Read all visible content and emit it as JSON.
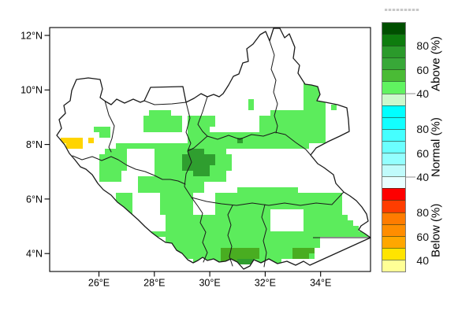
{
  "figure": {
    "kind": "seasonal tercile probability forecast map",
    "region_axes_units": {
      "x": "degrees East",
      "y": "degrees North"
    }
  },
  "chart_data": {
    "type": "heatmap",
    "x_axis": {
      "ticks": [
        {
          "label": "26°E",
          "lon": 26
        },
        {
          "label": "28°E",
          "lon": 28
        },
        {
          "label": "30°E",
          "lon": 30
        },
        {
          "label": "32°E",
          "lon": 32
        },
        {
          "label": "34°E",
          "lon": 34
        }
      ]
    },
    "y_axis": {
      "ticks": [
        {
          "label": "12°N",
          "lat": 12
        },
        {
          "label": "10°N",
          "lat": 10
        },
        {
          "label": "8°N",
          "lat": 8
        },
        {
          "label": "6°N",
          "lat": 6
        },
        {
          "label": "4°N",
          "lat": 4
        }
      ]
    },
    "grid": {
      "cell": 7,
      "origin": [
        63,
        35
      ],
      "colors": {
        "G": "#5cec5c",
        "M": "#49ad21",
        "D": "#2f9e2f",
        "Y": "#ffd400",
        "P": "#ffff99"
      },
      "color_meaning": {
        "G": "above-normal 40-50%",
        "M": "above-normal 50-60%",
        "D": "above-normal 60-80%",
        "Y": "below-normal 40-50%",
        "P": "below-normal ~40%"
      },
      "rows": [
        {
          "r": 8,
          "runs": [
            [
              47,
              47,
              "G"
            ]
          ]
        },
        {
          "r": 9,
          "runs": [
            [
              46,
              49,
              "G"
            ]
          ]
        },
        {
          "r": 10,
          "runs": [
            [
              46,
              49,
              "G"
            ]
          ]
        },
        {
          "r": 11,
          "runs": [
            [
              46,
              49,
              "G"
            ]
          ]
        },
        {
          "r": 12,
          "runs": [
            [
              46,
              49,
              "G"
            ]
          ]
        },
        {
          "r": 13,
          "runs": [
            [
              36,
              36,
              "G"
            ],
            [
              46,
              49,
              "G"
            ]
          ]
        },
        {
          "r": 14,
          "runs": [
            [
              36,
              36,
              "G"
            ],
            [
              46,
              49,
              "G"
            ],
            [
              51,
              51,
              "G"
            ]
          ]
        },
        {
          "r": 15,
          "runs": [
            [
              18,
              21,
              "G"
            ],
            [
              40,
              49,
              "G"
            ]
          ]
        },
        {
          "r": 16,
          "runs": [
            [
              17,
              23,
              "G"
            ],
            [
              25,
              29,
              "G"
            ],
            [
              38,
              49,
              "G"
            ]
          ]
        },
        {
          "r": 17,
          "runs": [
            [
              17,
              23,
              "G"
            ],
            [
              25,
              29,
              "G"
            ],
            [
              38,
              49,
              "G"
            ]
          ]
        },
        {
          "r": 18,
          "runs": [
            [
              8,
              10,
              "G"
            ],
            [
              17,
              23,
              "G"
            ],
            [
              25,
              28,
              "G"
            ],
            [
              38,
              49,
              "G"
            ]
          ]
        },
        {
          "r": 19,
          "runs": [
            [
              9,
              10,
              "G"
            ],
            [
              25,
              49,
              "G"
            ]
          ]
        },
        {
          "r": 20,
          "runs": [
            [
              2,
              5,
              "Y"
            ],
            [
              7,
              7,
              "Y"
            ],
            [
              25,
              33,
              "G"
            ],
            [
              34,
              34,
              "D"
            ],
            [
              35,
              49,
              "G"
            ]
          ]
        },
        {
          "r": 21,
          "runs": [
            [
              2,
              2,
              "P"
            ],
            [
              3,
              5,
              "Y"
            ],
            [
              12,
              46,
              "G"
            ]
          ]
        },
        {
          "r": 22,
          "runs": [
            [
              10,
              13,
              "G"
            ],
            [
              19,
              24,
              "G"
            ],
            [
              25,
              27,
              "D"
            ],
            [
              28,
              31,
              "G"
            ]
          ]
        },
        {
          "r": 23,
          "runs": [
            [
              9,
              13,
              "G"
            ],
            [
              19,
              23,
              "G"
            ],
            [
              24,
              29,
              "D"
            ],
            [
              30,
              32,
              "G"
            ]
          ]
        },
        {
          "r": 24,
          "runs": [
            [
              9,
              13,
              "G"
            ],
            [
              19,
              23,
              "G"
            ],
            [
              24,
              29,
              "D"
            ],
            [
              30,
              32,
              "G"
            ]
          ]
        },
        {
          "r": 25,
          "runs": [
            [
              9,
              13,
              "G"
            ],
            [
              19,
              23,
              "G"
            ],
            [
              24,
              28,
              "D"
            ],
            [
              29,
              32,
              "G"
            ]
          ]
        },
        {
          "r": 26,
          "runs": [
            [
              9,
              12,
              "G"
            ],
            [
              19,
              25,
              "G"
            ],
            [
              26,
              28,
              "D"
            ],
            [
              29,
              31,
              "G"
            ]
          ]
        },
        {
          "r": 27,
          "runs": [
            [
              9,
              12,
              "G"
            ],
            [
              16,
              31,
              "G"
            ]
          ]
        },
        {
          "r": 28,
          "runs": [
            [
              16,
              27,
              "G"
            ]
          ]
        },
        {
          "r": 29,
          "runs": [
            [
              16,
              27,
              "G"
            ],
            [
              34,
              44,
              "G"
            ]
          ]
        },
        {
          "r": 30,
          "runs": [
            [
              12,
              14,
              "G"
            ],
            [
              20,
              25,
              "G"
            ],
            [
              30,
              52,
              "G"
            ]
          ]
        },
        {
          "r": 31,
          "runs": [
            [
              12,
              14,
              "G"
            ],
            [
              20,
              25,
              "G"
            ],
            [
              30,
              52,
              "G"
            ]
          ]
        },
        {
          "r": 32,
          "runs": [
            [
              12,
              14,
              "G"
            ],
            [
              20,
              25,
              "G"
            ],
            [
              30,
              52,
              "G"
            ]
          ]
        },
        {
          "r": 33,
          "runs": [
            [
              12,
              14,
              "G"
            ],
            [
              20,
              25,
              "G"
            ],
            [
              30,
              39,
              "G"
            ],
            [
              46,
              52,
              "G"
            ]
          ]
        },
        {
          "r": 34,
          "runs": [
            [
              21,
              39,
              "G"
            ],
            [
              46,
              53,
              "G"
            ]
          ]
        },
        {
          "r": 35,
          "runs": [
            [
              21,
              39,
              "G"
            ],
            [
              46,
              54,
              "G"
            ]
          ]
        },
        {
          "r": 36,
          "runs": [
            [
              15,
              15,
              "G"
            ],
            [
              21,
              39,
              "G"
            ],
            [
              46,
              55,
              "G"
            ]
          ]
        },
        {
          "r": 37,
          "runs": [
            [
              17,
              57,
              "G"
            ]
          ]
        },
        {
          "r": 38,
          "runs": [
            [
              21,
              48,
              "G"
            ]
          ]
        },
        {
          "r": 39,
          "runs": [
            [
              21,
              48,
              "G"
            ]
          ]
        },
        {
          "r": 40,
          "runs": [
            [
              22,
              30,
              "G"
            ],
            [
              31,
              37,
              "M"
            ],
            [
              38,
              43,
              "G"
            ],
            [
              44,
              47,
              "M"
            ]
          ]
        },
        {
          "r": 41,
          "runs": [
            [
              23,
              30,
              "G"
            ],
            [
              31,
              37,
              "M"
            ],
            [
              38,
              43,
              "G"
            ],
            [
              44,
              46,
              "M"
            ],
            [
              47,
              47,
              "G"
            ]
          ]
        },
        {
          "r": 42,
          "runs": [
            [
              26,
              30,
              "G"
            ],
            [
              31,
              33,
              "M"
            ],
            [
              34,
              36,
              "D"
            ],
            [
              37,
              41,
              "G"
            ]
          ]
        }
      ]
    }
  },
  "legend": {
    "sections": [
      {
        "label": "Above (%)",
        "tick_labels": [
          "80",
          "60",
          "40"
        ],
        "colors": [
          "#004f00",
          "#0e7c0e",
          "#2b9a2b",
          "#38a838",
          "#4abb35",
          "#60f360",
          "#ccf9cc"
        ]
      },
      {
        "label": "Normal (%)",
        "tick_labels": [
          "80",
          "60",
          "40"
        ],
        "colors": [
          "#00ffff",
          "#12ffff",
          "#45ffff",
          "#6bffff",
          "#93ffff",
          "#c0fbfb",
          "#e8ffff"
        ]
      },
      {
        "label": "Below (%)",
        "tick_labels": [
          "80",
          "60",
          "40"
        ],
        "colors": [
          "#fe0000",
          "#ff3d00",
          "#ff7c00",
          "#ff8d00",
          "#ffa700",
          "#ffe400",
          "#ffff96"
        ]
      }
    ]
  },
  "map_style": {
    "border_color": "#1a1a1a",
    "background": "#ffffff"
  }
}
